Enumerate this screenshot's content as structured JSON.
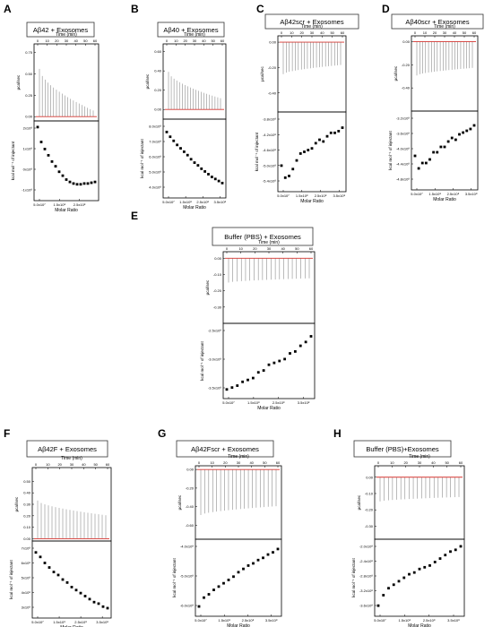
{
  "chart_data": [
    {
      "letter": "A",
      "title": "Aβ42 + Exosomes",
      "type": "itc",
      "top": {
        "xlabel": "Time (min)",
        "ylabel": "µcal/sec",
        "xticks": [
          "0",
          "10",
          "20",
          "30",
          "40",
          "50",
          "60"
        ],
        "yticks": [
          "0.75",
          "0.50",
          "0.25",
          "0.00"
        ],
        "ymin": -0.05,
        "ymax": 0.85,
        "peak_start": 0.62,
        "peak_end": 0.08,
        "peak_sign": 1
      },
      "bottom": {
        "xlabel": "Molar Ratio",
        "ylabel": "kcal mol⁻¹ of injectant",
        "xticks": [
          "5.0x10⁷",
          "1.5x10⁸",
          "2.5x10⁸"
        ],
        "yticks": [
          "2x10⁸",
          "1x10⁸",
          "0x10⁸",
          "-1x10⁸"
        ],
        "ymin": -1.8,
        "ymax": 2.6,
        "points": [
          2.55,
          1.6,
          1.15,
          0.75,
          0.35,
          0.05,
          -0.3,
          -0.55,
          -0.8,
          -0.95,
          -1.05,
          -1.1,
          -1.1,
          -1.05,
          -1.05,
          -1.0,
          -0.95
        ]
      }
    },
    {
      "letter": "B",
      "title": "Aβ40 + Exosomes",
      "type": "itc",
      "top": {
        "xlabel": "Time (min)",
        "ylabel": "µcal/sec",
        "xticks": [
          "0",
          "10",
          "20",
          "30",
          "40",
          "50",
          "60"
        ],
        "yticks": [
          "0.60",
          "0.40",
          "0.20",
          "0.00"
        ],
        "ymin": -0.1,
        "ymax": 0.68,
        "peak_start": 0.5,
        "peak_end": 0.15,
        "peak_sign": 1
      },
      "bottom": {
        "xlabel": "Molar Ratio",
        "ylabel": "kcal mol⁻¹ of injectant",
        "xticks": [
          "5.0x10⁷",
          "1.5x10⁸",
          "2.5x10⁸",
          "3.5x10⁸"
        ],
        "yticks": [
          "8.0x10⁸",
          "7.0x10⁸",
          "6.0x10⁸",
          "5.0x10⁸",
          "4.0x10⁸"
        ],
        "ymin": 3.5,
        "ymax": 8.5,
        "points": [
          7.95,
          7.6,
          7.3,
          7.0,
          6.75,
          6.5,
          6.25,
          5.95,
          5.7,
          5.5,
          5.25,
          5.05,
          4.85,
          4.65,
          4.5,
          4.35,
          4.2
        ]
      }
    },
    {
      "letter": "C",
      "title": "Aβ42scr + Exosomes",
      "type": "itc",
      "top": {
        "xlabel": "Time (min)",
        "ylabel": "µcal/sec",
        "xticks": [
          "0",
          "10",
          "20",
          "30",
          "40",
          "50",
          "60"
        ],
        "yticks": [
          "0.00",
          "-0.20",
          "-0.40"
        ],
        "ymin": -0.55,
        "ymax": 0.05,
        "peak_start": 0.42,
        "peak_end": 0.3,
        "peak_sign": -1
      },
      "bottom": {
        "xlabel": "Molar Ratio",
        "ylabel": "kcal mol⁻¹ of injectant",
        "xticks": [
          "5.0x10⁷",
          "1.5x10⁸",
          "2.5x10⁸",
          "3.5x10⁸"
        ],
        "yticks": [
          "-3.8x10⁸",
          "-4.2x10⁸",
          "-4.6x10⁸",
          "-5.0x10⁸",
          "-5.4x10⁸"
        ],
        "ymin": -5.6,
        "ymax": -3.6,
        "points": [
          -5.0,
          -5.35,
          -5.3,
          -5.1,
          -4.85,
          -4.65,
          -4.6,
          -4.55,
          -4.5,
          -4.35,
          -4.25,
          -4.3,
          -4.15,
          -4.05,
          -4.05,
          -4.0,
          -3.9
        ]
      }
    },
    {
      "letter": "D",
      "title": "Aβ40scr + Exosomes",
      "type": "itc",
      "top": {
        "xlabel": "Time (min)",
        "ylabel": "µcal/sec",
        "xticks": [
          "0",
          "10",
          "20",
          "30",
          "40",
          "50",
          "60"
        ],
        "yticks": [
          "0.00",
          "-0.20",
          "-0.40"
        ],
        "ymin": -0.6,
        "ymax": 0.05,
        "peak_start": 0.45,
        "peak_end": 0.35,
        "peak_sign": -1
      },
      "bottom": {
        "xlabel": "Molar Ratio",
        "ylabel": "kcal mol⁻¹ of injectant",
        "xticks": [
          "5.0x10⁷",
          "1.5x10⁸",
          "2.5x10⁸",
          "3.5x10⁸"
        ],
        "yticks": [
          "-3.2x10⁸",
          "-3.6x10⁸",
          "-4.0x10⁸",
          "-4.4x10⁸",
          "-4.8x10⁸"
        ],
        "ymin": -4.95,
        "ymax": -3.05,
        "points": [
          -4.15,
          -4.5,
          -4.35,
          -4.35,
          -4.25,
          -4.05,
          -4.05,
          -3.9,
          -3.9,
          -3.75,
          -3.65,
          -3.7,
          -3.55,
          -3.5,
          -3.45,
          -3.4,
          -3.3
        ]
      }
    },
    {
      "letter": "E",
      "title": "Buffer (PBS) + Exosomes",
      "type": "itc",
      "top": {
        "xlabel": "Time (min)",
        "ylabel": "µcal/sec",
        "xticks": [
          "0",
          "10",
          "20",
          "30",
          "40",
          "50",
          "60"
        ],
        "yticks": [
          "0.00",
          "-0.10",
          "-0.20",
          "-0.30"
        ],
        "ymin": -0.4,
        "ymax": 0.04,
        "peak_start": 0.34,
        "peak_end": 0.28,
        "peak_sign": -1
      },
      "bottom": {
        "xlabel": "Molar Ratio",
        "ylabel": "kcal mol⁻¹ of injectant",
        "xticks": [
          "5.0x10⁷",
          "1.5x10⁸",
          "2.5x10⁸",
          "3.5x10⁸"
        ],
        "yticks": [
          "-2.5x10⁸",
          "-3.0x10⁸",
          "-3.5x10⁸"
        ],
        "ymin": -3.85,
        "ymax": -2.15,
        "points": [
          -3.75,
          -3.7,
          -3.65,
          -3.55,
          -3.5,
          -3.45,
          -3.3,
          -3.25,
          -3.1,
          -3.05,
          -3.0,
          -2.95,
          -2.8,
          -2.75,
          -2.6,
          -2.5,
          -2.35
        ]
      }
    },
    {
      "letter": "F",
      "title": "Aβ42F + Exosomes",
      "type": "itc",
      "top": {
        "xlabel": "Time (min)",
        "ylabel": "µcal/sec",
        "xticks": [
          "0",
          "10",
          "20",
          "30",
          "40",
          "50",
          "60"
        ],
        "yticks": [
          "0.50",
          "0.40",
          "0.30",
          "0.20",
          "0.10",
          "0.00"
        ],
        "ymin": -0.02,
        "ymax": 0.62,
        "peak_start": 0.52,
        "peak_end": 0.32,
        "peak_sign": 1
      },
      "bottom": {
        "xlabel": "Molar Ratio",
        "ylabel": "kcal mol⁻¹ of injectant",
        "xticks": [
          "5.0x10⁷",
          "1.5x10⁸",
          "2.5x10⁸",
          "3.5x10⁸"
        ],
        "yticks": [
          "7x10⁸",
          "6x10⁸",
          "5x10⁸",
          "4x10⁸",
          "3x10⁸"
        ],
        "ymin": 2.9,
        "ymax": 7.3,
        "points": [
          6.9,
          6.6,
          6.2,
          5.9,
          5.6,
          5.4,
          5.1,
          4.9,
          4.6,
          4.4,
          4.2,
          4.0,
          3.8,
          3.6,
          3.5,
          3.3,
          3.2
        ]
      }
    },
    {
      "letter": "G",
      "title": "Aβ42Fscr + Exosomes",
      "type": "itc",
      "top": {
        "xlabel": "Time (min)",
        "ylabel": "µcal/sec",
        "xticks": [
          "0",
          "10",
          "20",
          "30",
          "40",
          "50",
          "60"
        ],
        "yticks": [
          "0.00",
          "-0.20",
          "-0.40",
          "-0.60"
        ],
        "ymin": -0.75,
        "ymax": 0.04,
        "peak_start": 0.62,
        "peak_end": 0.5,
        "peak_sign": -1
      },
      "bottom": {
        "xlabel": "Molar Ratio",
        "ylabel": "kcal mol⁻¹ of injectant",
        "xticks": [
          "5.0x10⁷",
          "1.5x10⁸",
          "2.5x10⁸",
          "3.5x10⁸"
        ],
        "yticks": [
          "-4.0x10⁸",
          "-5.0x10⁸",
          "-6.0x10⁸"
        ],
        "ymin": -6.5,
        "ymax": -3.5,
        "points": [
          -6.3,
          -5.9,
          -5.75,
          -5.55,
          -5.4,
          -5.25,
          -5.1,
          -4.95,
          -4.75,
          -4.6,
          -4.45,
          -4.35,
          -4.2,
          -4.1,
          -3.95,
          -3.85,
          -3.7
        ]
      }
    },
    {
      "letter": "H",
      "title": "Buffer (PBS)+Exosomes",
      "type": "itc",
      "top": {
        "xlabel": "Time (min)",
        "ylabel": "µcal/sec",
        "xticks": [
          "0",
          "10",
          "20",
          "30",
          "40",
          "50",
          "60"
        ],
        "yticks": [
          "0.00",
          "-0.10",
          "-0.20",
          "-0.30"
        ],
        "ymin": -0.38,
        "ymax": 0.07,
        "peak_start": 0.33,
        "peak_end": 0.27,
        "peak_sign": -1
      },
      "bottom": {
        "xlabel": "Molar Ratio",
        "ylabel": "kcal mol⁻¹ of injectant",
        "xticks": [
          "5.0x10⁷",
          "1.5x10⁸",
          "2.5x10⁸",
          "3.5x10⁸"
        ],
        "yticks": [
          "-2.0x10⁸",
          "-2.4x10⁸",
          "-2.8x10⁸",
          "-3.2x10⁸",
          "-3.6x10⁸"
        ],
        "ymin": -3.75,
        "ymax": -1.85,
        "points": [
          -3.6,
          -3.3,
          -3.1,
          -3.0,
          -2.9,
          -2.8,
          -2.7,
          -2.65,
          -2.55,
          -2.5,
          -2.45,
          -2.35,
          -2.25,
          -2.15,
          -2.05,
          -2.0,
          -1.9
        ]
      }
    }
  ]
}
